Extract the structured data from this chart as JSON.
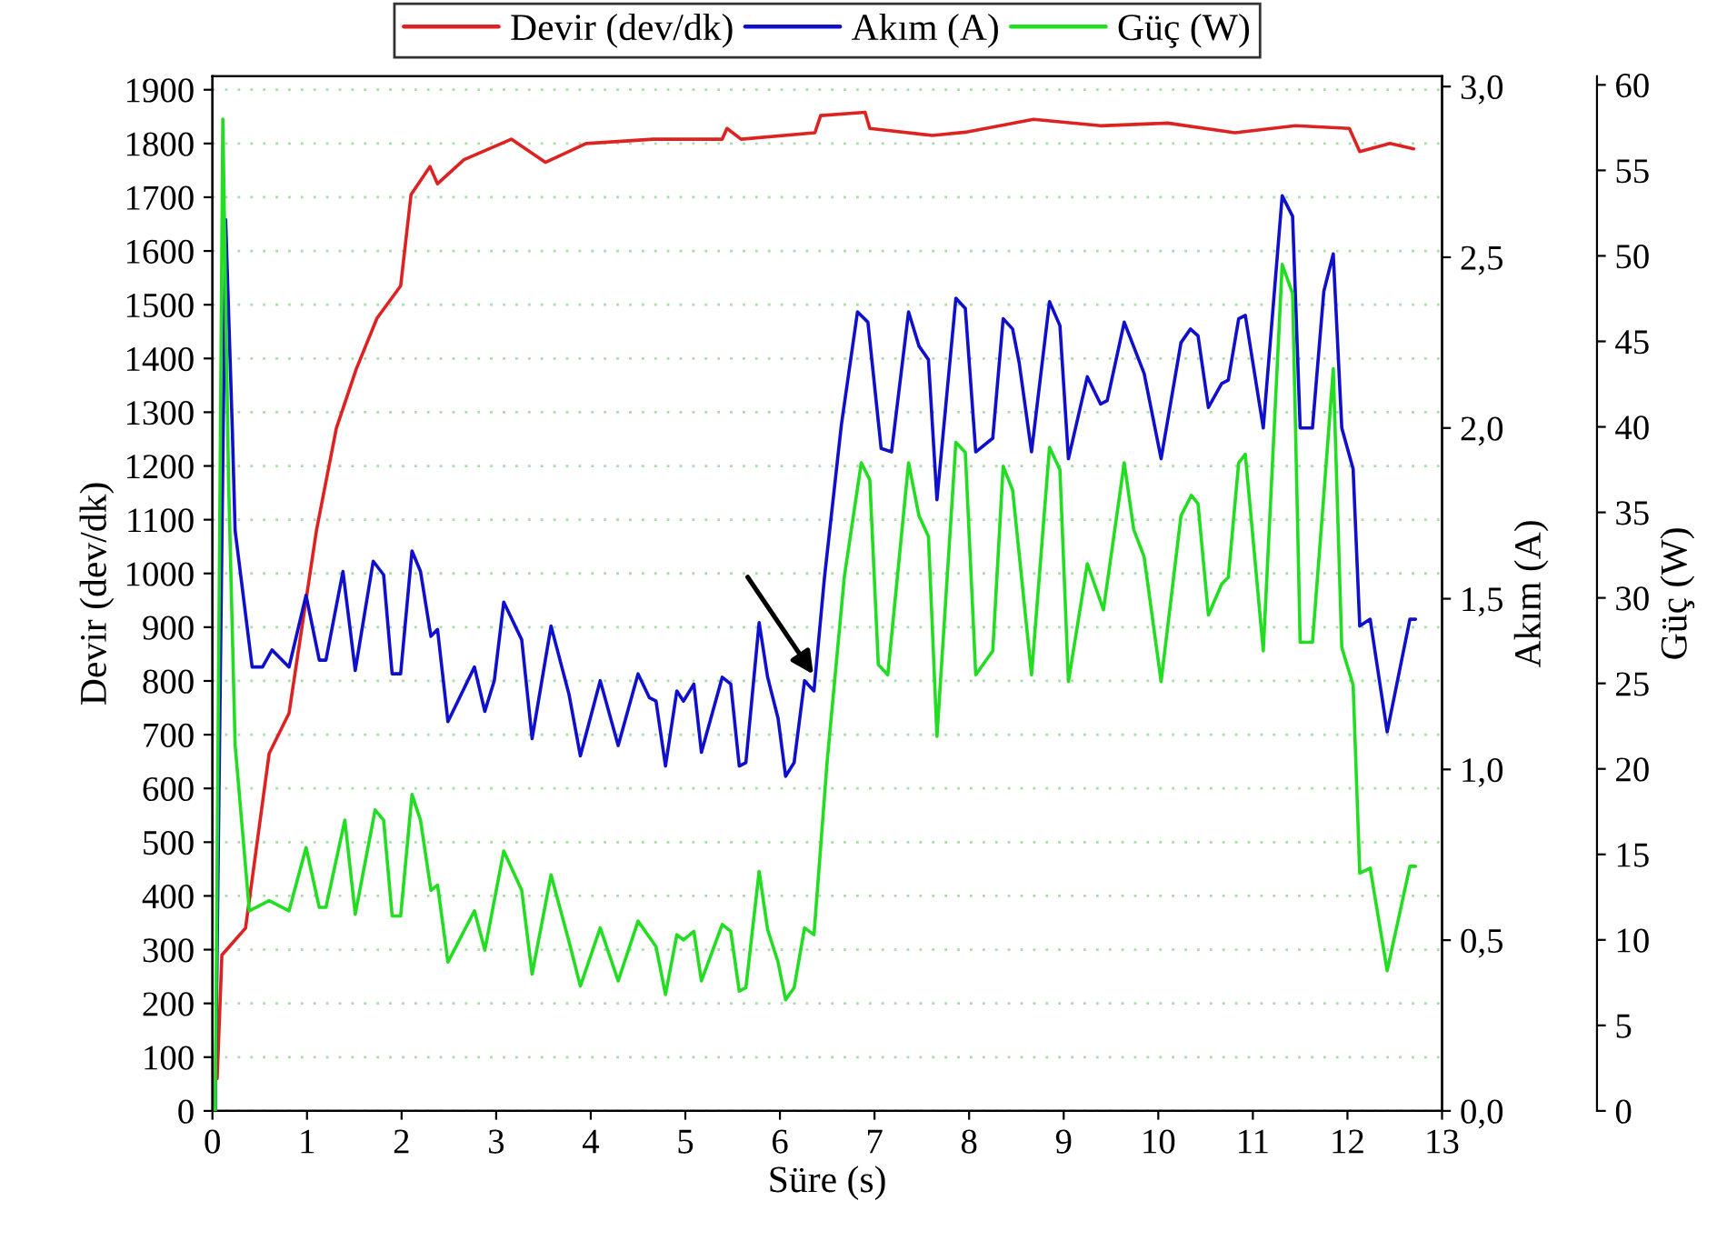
{
  "chart_data": {
    "type": "line",
    "xlabel": "Süre (s)",
    "ylabel": "Devir (dev/dk)",
    "y2label": "Akım (A)",
    "y3label": "Güç (W)",
    "xlim": [
      0,
      13
    ],
    "xticks": [
      0,
      1,
      2,
      3,
      4,
      5,
      6,
      7,
      8,
      9,
      10,
      11,
      12,
      13
    ],
    "ylim": [
      0,
      1925
    ],
    "yticks": [
      0,
      100,
      200,
      300,
      400,
      500,
      600,
      700,
      800,
      900,
      1000,
      1100,
      1200,
      1300,
      1400,
      1500,
      1600,
      1700,
      1800,
      1900
    ],
    "y2lim": [
      0,
      3.03
    ],
    "y2ticks": [
      {
        "value": 0,
        "label": "0,0"
      },
      {
        "value": 0.5,
        "label": "0,5"
      },
      {
        "value": 1,
        "label": "1,0"
      },
      {
        "value": 1.5,
        "label": "1,5"
      },
      {
        "value": 2,
        "label": "2,0"
      },
      {
        "value": 2.5,
        "label": "2,5"
      },
      {
        "value": 3,
        "label": "3,0"
      }
    ],
    "y3lim": [
      0,
      60.5
    ],
    "y3ticks": [
      0,
      5,
      10,
      15,
      20,
      25,
      30,
      35,
      40,
      45,
      50,
      55,
      60
    ],
    "grid": "y",
    "legend": "top",
    "line_style": "solid",
    "marker": "none",
    "series": [
      {
        "name": "Devir (dev/dk)",
        "color": "#dd2222",
        "x": [
          0.05,
          0.1,
          0.35,
          0.6,
          0.81,
          1.1,
          1.31,
          1.52,
          1.74,
          1.99,
          2.1,
          2.3,
          2.38,
          2.66,
          3.16,
          3.52,
          3.95,
          4.66,
          5.39,
          5.44,
          5.59,
          6.37,
          6.43,
          6.9,
          6.95,
          7.61,
          7.96,
          8.68,
          9.39,
          10.1,
          10.81,
          11.45,
          12.02,
          12.13,
          12.45,
          12.7
        ],
        "values": [
          60,
          290,
          340,
          665,
          740,
          1080,
          1270,
          1380,
          1475,
          1535,
          1705,
          1757,
          1725,
          1770,
          1808,
          1765,
          1800,
          1808,
          1808,
          1828,
          1808,
          1820,
          1852,
          1858,
          1828,
          1815,
          1821,
          1845,
          1833,
          1838,
          1820,
          1833,
          1828,
          1785,
          1800,
          1790
        ]
      },
      {
        "name": "Akım (A)",
        "color": "#1010cc",
        "axis": "y2",
        "x": [
          0.03,
          0.14,
          0.21,
          0.24,
          0.42,
          0.53,
          0.63,
          0.81,
          0.99,
          1.13,
          1.2,
          1.38,
          1.51,
          1.7,
          1.81,
          1.9,
          1.99,
          2.11,
          2.2,
          2.31,
          2.38,
          2.49,
          2.77,
          2.88,
          2.98,
          3.08,
          3.27,
          3.38,
          3.58,
          3.77,
          3.89,
          4.1,
          4.29,
          4.5,
          4.62,
          4.69,
          4.79,
          4.91,
          4.98,
          5.09,
          5.17,
          5.39,
          5.48,
          5.57,
          5.64,
          5.78,
          5.87,
          5.98,
          6.06,
          6.15,
          6.26,
          6.36,
          6.47,
          6.65,
          6.82,
          6.93,
          7.07,
          7.18,
          7.36,
          7.47,
          7.57,
          7.66,
          7.86,
          7.96,
          8.07,
          8.25,
          8.36,
          8.46,
          8.53,
          8.66,
          8.85,
          8.96,
          9.05,
          9.25,
          9.39,
          9.46,
          9.64,
          9.85,
          10.03,
          10.24,
          10.34,
          10.42,
          10.53,
          10.67,
          10.74,
          10.85,
          10.92,
          11.11,
          11.31,
          11.42,
          11.5,
          11.63,
          11.75,
          11.85,
          11.94,
          12.06,
          12.13,
          12.24,
          12.42,
          12.66,
          12.72
        ],
        "values": [
          0.0,
          2.61,
          2.0,
          1.7,
          1.3,
          1.3,
          1.35,
          1.3,
          1.51,
          1.32,
          1.32,
          1.58,
          1.29,
          1.61,
          1.57,
          1.28,
          1.28,
          1.64,
          1.58,
          1.39,
          1.41,
          1.14,
          1.3,
          1.17,
          1.26,
          1.49,
          1.38,
          1.09,
          1.42,
          1.22,
          1.04,
          1.26,
          1.07,
          1.28,
          1.21,
          1.2,
          1.01,
          1.23,
          1.2,
          1.25,
          1.05,
          1.27,
          1.25,
          1.01,
          1.02,
          1.43,
          1.27,
          1.15,
          0.98,
          1.02,
          1.26,
          1.23,
          1.56,
          2.01,
          2.34,
          2.31,
          1.94,
          1.93,
          2.34,
          2.24,
          2.2,
          1.79,
          2.38,
          2.35,
          1.93,
          1.97,
          2.32,
          2.29,
          2.19,
          1.93,
          2.37,
          2.3,
          1.91,
          2.15,
          2.07,
          2.08,
          2.31,
          2.16,
          1.91,
          2.25,
          2.29,
          2.27,
          2.06,
          2.13,
          2.14,
          2.32,
          2.33,
          2.0,
          2.68,
          2.62,
          2.0,
          2.0,
          2.4,
          2.51,
          2.0,
          1.88,
          1.42,
          1.44,
          1.11,
          1.44,
          1.44
        ]
      },
      {
        "name": "Güç (W)",
        "color": "#22dd22",
        "axis": "y3",
        "x": [
          0.03,
          0.11,
          0.17,
          0.24,
          0.39,
          0.6,
          0.81,
          0.99,
          1.13,
          1.2,
          1.4,
          1.51,
          1.72,
          1.81,
          1.9,
          1.99,
          2.11,
          2.2,
          2.31,
          2.38,
          2.49,
          2.77,
          2.88,
          3.08,
          3.27,
          3.38,
          3.58,
          3.77,
          3.89,
          4.1,
          4.29,
          4.5,
          4.69,
          4.79,
          4.91,
          4.98,
          5.09,
          5.17,
          5.39,
          5.48,
          5.57,
          5.64,
          5.78,
          5.87,
          5.98,
          6.06,
          6.15,
          6.26,
          6.36,
          6.5,
          6.68,
          6.86,
          6.95,
          7.04,
          7.14,
          7.36,
          7.47,
          7.57,
          7.66,
          7.86,
          7.96,
          8.07,
          8.25,
          8.36,
          8.46,
          8.66,
          8.85,
          8.96,
          9.05,
          9.25,
          9.42,
          9.64,
          9.74,
          9.85,
          10.03,
          10.24,
          10.35,
          10.42,
          10.53,
          10.67,
          10.74,
          10.85,
          10.92,
          11.11,
          11.31,
          11.42,
          11.5,
          11.63,
          11.75,
          11.85,
          11.94,
          12.06,
          12.13,
          12.24,
          12.42,
          12.66,
          12.72
        ],
        "values": [
          0,
          58,
          37,
          21.4,
          11.7,
          12.3,
          11.7,
          15.4,
          11.9,
          11.9,
          17.0,
          11.5,
          17.6,
          17.0,
          11.4,
          11.4,
          18.5,
          17.0,
          12.9,
          13.2,
          8.7,
          11.7,
          9.4,
          15.2,
          12.9,
          8.0,
          13.8,
          9.9,
          7.3,
          10.7,
          7.6,
          11.1,
          9.6,
          6.8,
          10.3,
          10.0,
          10.5,
          7.6,
          10.9,
          10.5,
          7.0,
          7.2,
          14.0,
          10.6,
          8.7,
          6.5,
          7.2,
          10.7,
          10.3,
          20.5,
          31.2,
          37.9,
          36.9,
          26.1,
          25.5,
          37.9,
          34.8,
          33.6,
          21.9,
          39.1,
          38.5,
          25.5,
          26.9,
          37.7,
          36.3,
          25.5,
          38.8,
          37.5,
          25.1,
          32.0,
          29.3,
          37.9,
          34.0,
          32.4,
          25.1,
          34.8,
          36.0,
          35.5,
          29.0,
          30.8,
          31.2,
          37.9,
          38.4,
          26.9,
          49.5,
          47.8,
          27.4,
          27.4,
          36.0,
          43.4,
          27.1,
          24.9,
          13.9,
          14.2,
          8.2,
          14.3,
          14.3
        ]
      }
    ]
  }
}
